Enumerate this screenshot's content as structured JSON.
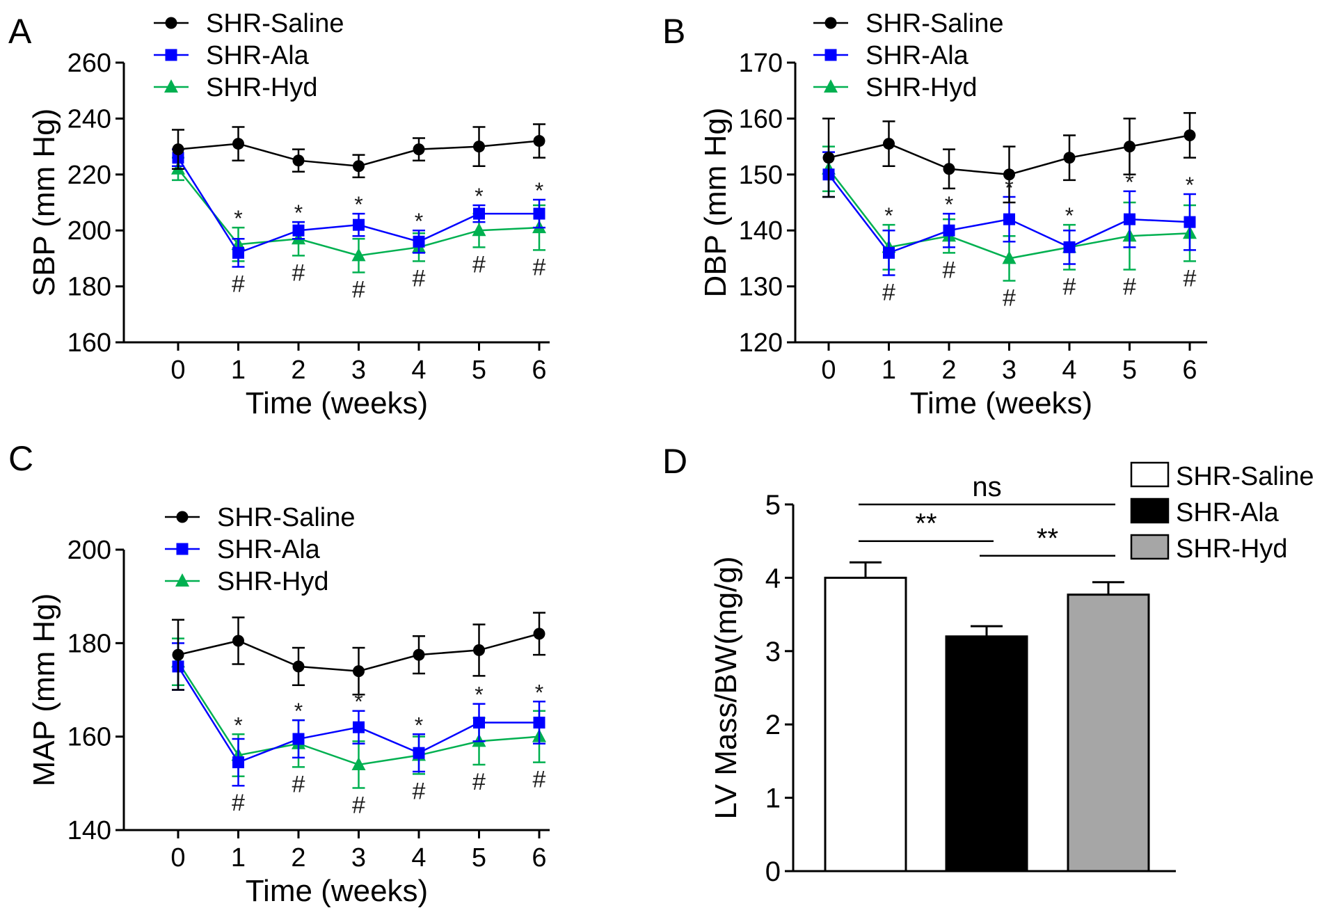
{
  "chart_data": [
    {
      "panel": "A",
      "type": "line",
      "xlabel": "Time (weeks)",
      "ylabel": "SBP (mm Hg)",
      "ylim": [
        160,
        260
      ],
      "yticks": [
        160,
        180,
        200,
        220,
        240,
        260
      ],
      "x": [
        0,
        1,
        2,
        3,
        4,
        5,
        6
      ],
      "series": [
        {
          "name": "SHR-Saline",
          "color": "#000000",
          "marker": "circle",
          "values": [
            229,
            231,
            225,
            223,
            229,
            230,
            232
          ],
          "errors": [
            7,
            6,
            4,
            4,
            4,
            7,
            6
          ]
        },
        {
          "name": "SHR-Ala",
          "color": "#0000ff",
          "marker": "square",
          "values": [
            226,
            192,
            200,
            202,
            196,
            206,
            206
          ],
          "errors": [
            3,
            5,
            3,
            4,
            4,
            3,
            5
          ]
        },
        {
          "name": "SHR-Hyd",
          "color": "#00b050",
          "marker": "triangle",
          "values": [
            222,
            195,
            197,
            191,
            194,
            200,
            201
          ],
          "errors": [
            4,
            6,
            6,
            6,
            5,
            6,
            8
          ]
        }
      ],
      "star_x": [
        1,
        2,
        3,
        4,
        5,
        6
      ],
      "hash_x": [
        1,
        2,
        3,
        4,
        5,
        6
      ],
      "star_label": "*",
      "hash_label": "#"
    },
    {
      "panel": "B",
      "type": "line",
      "xlabel": "Time (weeks)",
      "ylabel": "DBP (mm Hg)",
      "ylim": [
        120,
        170
      ],
      "yticks": [
        120,
        130,
        140,
        150,
        160,
        170
      ],
      "x": [
        0,
        1,
        2,
        3,
        4,
        5,
        6
      ],
      "series": [
        {
          "name": "SHR-Saline",
          "color": "#000000",
          "marker": "circle",
          "values": [
            153,
            155.5,
            151,
            150,
            153,
            155,
            157
          ],
          "errors": [
            7,
            4,
            3.5,
            5,
            4,
            5,
            4
          ]
        },
        {
          "name": "SHR-Ala",
          "color": "#0000ff",
          "marker": "square",
          "values": [
            150,
            136,
            140,
            142,
            137,
            142,
            141.5
          ],
          "errors": [
            4,
            4,
            3,
            4,
            3,
            5,
            5
          ]
        },
        {
          "name": "SHR-Hyd",
          "color": "#00b050",
          "marker": "triangle",
          "values": [
            151,
            137,
            139,
            135,
            137,
            139,
            139.5
          ],
          "errors": [
            4,
            4,
            3,
            4,
            4,
            6,
            5
          ]
        }
      ],
      "star_x": [
        1,
        2,
        3,
        4,
        5,
        6
      ],
      "hash_x": [
        1,
        2,
        3,
        4,
        5,
        6
      ],
      "star_label": "*",
      "hash_label": "#"
    },
    {
      "panel": "C",
      "type": "line",
      "xlabel": "Time (weeks)",
      "ylabel": "MAP (mm Hg)",
      "ylim": [
        140,
        200
      ],
      "yticks": [
        140,
        160,
        180,
        200
      ],
      "x": [
        0,
        1,
        2,
        3,
        4,
        5,
        6
      ],
      "series": [
        {
          "name": "SHR-Saline",
          "color": "#000000",
          "marker": "circle",
          "values": [
            177.5,
            180.5,
            175,
            174,
            177.5,
            178.5,
            182
          ],
          "errors": [
            7.5,
            5,
            4,
            5,
            4,
            5.5,
            4.5
          ]
        },
        {
          "name": "SHR-Ala",
          "color": "#0000ff",
          "marker": "square",
          "values": [
            175,
            154.5,
            159.5,
            162,
            156.5,
            163,
            163
          ],
          "errors": [
            5,
            5,
            4,
            3.5,
            4,
            4,
            4.5
          ]
        },
        {
          "name": "SHR-Hyd",
          "color": "#00b050",
          "marker": "triangle",
          "values": [
            176,
            156,
            158.5,
            154,
            156,
            159,
            160
          ],
          "errors": [
            5,
            4.5,
            5,
            5,
            4,
            5,
            5.5
          ]
        }
      ],
      "star_x": [
        1,
        2,
        3,
        4,
        5,
        6
      ],
      "hash_x": [
        1,
        2,
        3,
        4,
        5,
        6
      ],
      "star_label": "*",
      "hash_label": "#"
    },
    {
      "panel": "D",
      "type": "bar",
      "ylabel": "LV Mass/BW(mg/g)",
      "ylim": [
        0,
        5
      ],
      "yticks": [
        0,
        1,
        2,
        3,
        4,
        5
      ],
      "categories": [
        "SHR-Saline",
        "SHR-Ala",
        "SHR-Hyd"
      ],
      "values": [
        4.0,
        3.2,
        3.77
      ],
      "errors": [
        0.21,
        0.14,
        0.17
      ],
      "colors": [
        "#ffffff",
        "#000000",
        "#a6a6a6"
      ],
      "comparisons": [
        {
          "from": 0,
          "to": 2,
          "label": "ns",
          "level": 5.0
        },
        {
          "from": 0,
          "to": 1,
          "label": "**",
          "level": 4.5
        },
        {
          "from": 1,
          "to": 2,
          "label": "**",
          "level": 4.3
        }
      ]
    }
  ]
}
